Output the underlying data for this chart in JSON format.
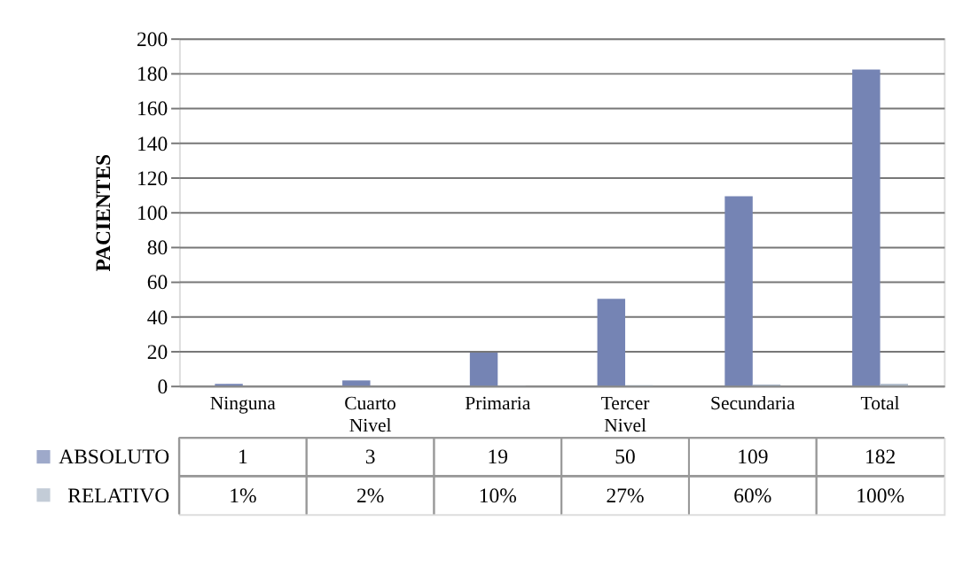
{
  "chart_data": {
    "type": "bar",
    "categories": [
      "Ninguna",
      "Cuarto Nivel",
      "Primaria",
      "Tercer Nivel",
      "Secundaria",
      "Total"
    ],
    "ylabel": "PACIENTES",
    "ylim": [
      0,
      200
    ],
    "yticks": [
      0,
      20,
      40,
      60,
      80,
      100,
      120,
      140,
      160,
      180,
      200
    ],
    "grid": "y",
    "legend": "bottom",
    "series": [
      {
        "name": "ABSOLUTO",
        "color": "#7584b4",
        "values": [
          1,
          3,
          19,
          50,
          109,
          182
        ],
        "value_labels": [
          "1",
          "3",
          "19",
          "50",
          "109",
          "182"
        ]
      },
      {
        "name": "RELATIVO",
        "color": "#a9b6c6",
        "values": [
          0.01,
          0.02,
          0.1,
          0.27,
          0.6,
          1
        ],
        "value_labels": [
          "1%",
          "2%",
          "10%",
          "27%",
          "60%",
          "100%"
        ]
      }
    ]
  }
}
